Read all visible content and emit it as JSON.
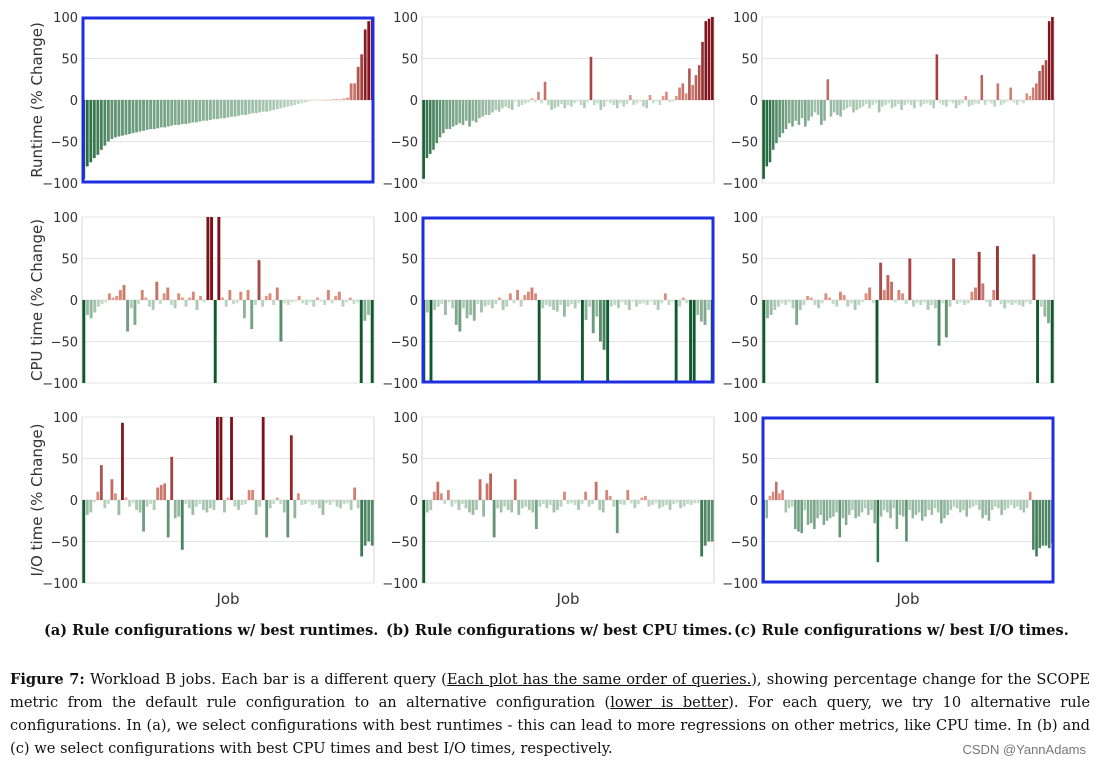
{
  "figure": {
    "subcaptions": [
      "(a) Rule configurations w/ best runtimes.",
      "(b) Rule configurations w/ best CPU times.",
      "(c) Rule configurations w/ best I/O times."
    ],
    "caption": {
      "label": "Figure 7:",
      "part1": "Workload B jobs. Each bar is a different query (",
      "underline1": "Each plot has the same order of queries.",
      "part2": "), showing percentage change for the SCOPE metric from the default rule configuration to an alternative configuration (",
      "underline2": "lower is better",
      "part3": "). For each query, we try 10 alternative rule configurations. In (a), we select configurations with best runtimes - this can lead to more regressions on other metrics, like CPU time. In (b) and (c) we select configurations with best CPU times and best I/O times, respectively."
    },
    "watermark": "CSDN @YannAdams"
  },
  "chart_data": {
    "type": "bar",
    "layout": "3x3 grid",
    "rows": [
      "Runtime",
      "CPU time",
      "I/O time"
    ],
    "columns": [
      "(a) best runtimes",
      "(b) best CPU times",
      "(c) best I/O times"
    ],
    "ylabels": [
      "Runtime (% Change)",
      "CPU time (% Change)",
      "I/O time (% Change)"
    ],
    "xlabel": "Job",
    "ylim": [
      -100,
      100
    ],
    "yticks": [
      -100,
      -50,
      0,
      50,
      100
    ],
    "grid": "horizontal",
    "highlighted_panels": [
      [
        0,
        0
      ],
      [
        1,
        1
      ],
      [
        2,
        2
      ]
    ],
    "highlight_color": "#1f2fe0",
    "colors": {
      "improve_strong": "#0f5a2c",
      "improve_light": "#e8f3e8",
      "regress_light": "#f6b29c",
      "regress_strong": "#7d1018"
    },
    "panels": [
      [
        {
          "values": [
            -95,
            -80,
            -75,
            -70,
            -66,
            -60,
            -55,
            -50,
            -47,
            -45,
            -44,
            -43,
            -42,
            -41,
            -40,
            -39,
            -38,
            -37,
            -36,
            -35,
            -35,
            -34,
            -33,
            -33,
            -32,
            -31,
            -30,
            -30,
            -29,
            -29,
            -28,
            -27,
            -27,
            -26,
            -25,
            -25,
            -24,
            -23,
            -23,
            -22,
            -22,
            -21,
            -20,
            -20,
            -19,
            -18,
            -18,
            -17,
            -16,
            -16,
            -15,
            -14,
            -14,
            -13,
            -12,
            -11,
            -10,
            -9,
            -8,
            -7,
            -6,
            -5,
            -4,
            -3,
            -2,
            -1,
            -1,
            -1,
            0,
            0,
            0,
            1,
            1,
            1,
            2,
            3,
            20,
            20,
            40,
            55,
            85,
            95,
            100
          ]
        },
        {
          "values": [
            -95,
            -70,
            -65,
            -60,
            -52,
            -45,
            -40,
            -35,
            -35,
            -32,
            -30,
            -28,
            -30,
            -25,
            -32,
            -25,
            -27,
            -22,
            -20,
            -18,
            -18,
            -15,
            -12,
            -14,
            -10,
            -8,
            -10,
            -12,
            -2,
            -8,
            -6,
            -4,
            -3,
            2,
            -3,
            10,
            -4,
            22,
            -6,
            -12,
            -10,
            -8,
            -5,
            -10,
            -6,
            -8,
            -4,
            -2,
            -6,
            -10,
            -3,
            52,
            -6,
            -4,
            -12,
            -8,
            -2,
            -4,
            -6,
            -10,
            -4,
            -8,
            -5,
            6,
            -6,
            -4,
            -2,
            -8,
            -10,
            6,
            -4,
            -2,
            -6,
            5,
            10,
            -3,
            -2,
            5,
            15,
            20,
            8,
            38,
            18,
            30,
            42,
            70,
            95,
            98,
            100
          ]
        },
        {
          "values": [
            -95,
            -80,
            -75,
            -60,
            -52,
            -45,
            -40,
            -35,
            -28,
            -32,
            -25,
            -30,
            -22,
            -32,
            -25,
            -20,
            -15,
            -18,
            -30,
            -25,
            25,
            -20,
            -15,
            -18,
            -20,
            -12,
            -10,
            -8,
            -15,
            -12,
            -10,
            -8,
            -5,
            -10,
            -6,
            -4,
            -15,
            -8,
            -6,
            -4,
            -10,
            -8,
            -5,
            -12,
            -6,
            -4,
            -6,
            -10,
            -2,
            -8,
            -5,
            -4,
            -6,
            -10,
            55,
            -4,
            -6,
            -8,
            -2,
            -4,
            -10,
            -6,
            -4,
            5,
            -8,
            -6,
            -4,
            -5,
            30,
            -6,
            -2,
            -4,
            -8,
            20,
            -6,
            -4,
            -2,
            15,
            -3,
            -6,
            -2,
            -4,
            8,
            5,
            15,
            20,
            35,
            42,
            48,
            95,
            100
          ]
        }
      ],
      [
        {
          "values": [
            -100,
            -18,
            -22,
            -15,
            -8,
            -5,
            -3,
            8,
            3,
            5,
            12,
            18,
            -38,
            -10,
            -30,
            -5,
            12,
            3,
            -8,
            -12,
            22,
            -5,
            8,
            15,
            -6,
            -10,
            8,
            3,
            -8,
            3,
            10,
            -12,
            5,
            -3,
            100,
            100,
            -100,
            100,
            3,
            -8,
            12,
            -5,
            -4,
            10,
            -22,
            12,
            -35,
            -6,
            48,
            -8,
            5,
            8,
            -6,
            15,
            -50,
            -4,
            -6,
            -3,
            -2,
            5,
            -4,
            -6,
            -3,
            -8,
            3,
            -2,
            -6,
            12,
            -4,
            5,
            10,
            -8,
            -3,
            3,
            -5,
            -3,
            -100,
            -25,
            -18,
            -100
          ]
        },
        {
          "values": [
            -100,
            -15,
            -100,
            -12,
            -8,
            -5,
            -18,
            -3,
            -10,
            -30,
            -38,
            -10,
            -22,
            -18,
            -25,
            -5,
            -15,
            -8,
            -6,
            -10,
            -5,
            3,
            -12,
            -8,
            8,
            -4,
            12,
            -8,
            6,
            10,
            15,
            8,
            -100,
            -10,
            -6,
            -8,
            -12,
            -14,
            -6,
            -20,
            -8,
            -5,
            -10,
            -4,
            -100,
            -24,
            -8,
            -40,
            -20,
            -50,
            -60,
            -100,
            -8,
            -6,
            -10,
            -3,
            -6,
            -12,
            -2,
            -8,
            -5,
            -4,
            -6,
            -2,
            -6,
            -12,
            -4,
            8,
            -6,
            -2,
            -100,
            -8,
            3,
            -4,
            -100,
            -100,
            -18,
            -26,
            -30,
            -12,
            -100
          ]
        },
        {
          "values": [
            -100,
            -22,
            -18,
            -12,
            -8,
            -4,
            -6,
            -3,
            -10,
            -30,
            -12,
            -6,
            5,
            3,
            -6,
            -10,
            -4,
            8,
            3,
            -5,
            -8,
            10,
            6,
            -8,
            -4,
            -12,
            -6,
            -3,
            8,
            15,
            -4,
            -100,
            45,
            12,
            30,
            22,
            -3,
            12,
            8,
            -5,
            50,
            -8,
            -4,
            -6,
            -3,
            -12,
            -6,
            -10,
            -55,
            -4,
            -45,
            -8,
            50,
            -5,
            -3,
            -6,
            -4,
            10,
            15,
            58,
            20,
            -3,
            -8,
            12,
            65,
            -5,
            -10,
            -4,
            -6,
            -4,
            -6,
            -8,
            -3,
            -5,
            55,
            -100,
            -8,
            -20,
            -28,
            -100
          ]
        }
      ],
      [
        {
          "values": [
            -100,
            -18,
            -15,
            -3,
            10,
            42,
            -10,
            -5,
            25,
            8,
            -18,
            93,
            3,
            -8,
            -4,
            -12,
            -15,
            -38,
            -8,
            -5,
            -12,
            15,
            18,
            20,
            -45,
            52,
            -22,
            -20,
            -60,
            -5,
            -10,
            -18,
            -8,
            -5,
            -12,
            -15,
            -10,
            -12,
            100,
            100,
            -15,
            3,
            100,
            -8,
            -12,
            -6,
            -5,
            12,
            12,
            -18,
            -8,
            100,
            -45,
            -10,
            -5,
            3,
            -5,
            -15,
            -45,
            78,
            -22,
            8,
            -6,
            -5,
            -3,
            -6,
            -5,
            -10,
            -18,
            -4,
            -6,
            -3,
            -8,
            -10,
            -5,
            -4,
            -12,
            15,
            -10,
            -68,
            -55,
            -50,
            -55
          ]
        },
        {
          "values": [
            -100,
            -15,
            -12,
            10,
            22,
            8,
            -5,
            12,
            -8,
            -4,
            -12,
            -5,
            -10,
            -15,
            -18,
            -12,
            25,
            -20,
            20,
            32,
            -45,
            -10,
            -15,
            -8,
            -12,
            -15,
            25,
            -18,
            -10,
            -8,
            -12,
            -15,
            -35,
            -8,
            -5,
            -10,
            -6,
            -15,
            -12,
            -8,
            10,
            -5,
            -4,
            -6,
            -12,
            -5,
            10,
            -8,
            -5,
            22,
            -12,
            -15,
            12,
            5,
            -8,
            -40,
            -5,
            -6,
            12,
            -4,
            -10,
            -5,
            3,
            5,
            -8,
            -6,
            -4,
            -10,
            -8,
            -6,
            -12,
            -5,
            -4,
            -10,
            -8,
            -5,
            -6,
            -4,
            -4,
            -68,
            -55,
            -50,
            -50
          ]
        },
        {
          "values": [
            -100,
            -22,
            5,
            10,
            22,
            8,
            12,
            -15,
            -10,
            -8,
            -35,
            -38,
            -40,
            -12,
            -30,
            -28,
            -35,
            -22,
            -18,
            -30,
            -25,
            -22,
            -20,
            -15,
            -45,
            -22,
            -30,
            -18,
            -12,
            -22,
            -20,
            -15,
            -10,
            -18,
            -12,
            -28,
            -75,
            -20,
            -12,
            -15,
            -22,
            -10,
            -35,
            -18,
            -20,
            -50,
            -12,
            -22,
            -18,
            -15,
            -25,
            -20,
            -12,
            -18,
            -10,
            -15,
            -28,
            -22,
            -18,
            -12,
            -8,
            -10,
            -15,
            -12,
            -20,
            -10,
            -8,
            -6,
            -12,
            -22,
            -18,
            -25,
            -12,
            -8,
            -10,
            -18,
            -12,
            -10,
            -6,
            -10,
            -8,
            -12,
            -15,
            -10,
            10,
            -60,
            -68,
            -58,
            -55,
            -55,
            -58,
            -52
          ]
        }
      ]
    ]
  }
}
